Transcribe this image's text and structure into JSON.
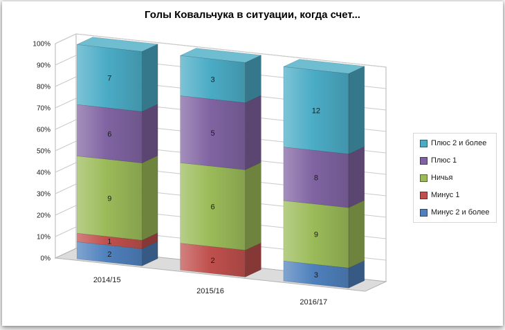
{
  "title": "Голы Ковальчука в ситуации, когда счет...",
  "chart_data": {
    "type": "bar",
    "subtype": "3d-100pct-stacked-column",
    "title": "Голы Ковальчука в ситуации, когда счет...",
    "categories": [
      "2014/15",
      "2015/16",
      "2016/17"
    ],
    "series": [
      {
        "name": "Минус 2 и более",
        "color": "#4F81BD",
        "values": [
          2,
          0,
          3
        ]
      },
      {
        "name": "Минус 1",
        "color": "#C0504D",
        "values": [
          1,
          2,
          0
        ]
      },
      {
        "name": "Ничья",
        "color": "#9BBB59",
        "values": [
          9,
          6,
          9
        ]
      },
      {
        "name": "Плюс 1",
        "color": "#8064A2",
        "values": [
          6,
          5,
          8
        ]
      },
      {
        "name": "Плюс 2 и более",
        "color": "#4BACC6",
        "values": [
          7,
          3,
          12
        ]
      }
    ],
    "y_axis": {
      "min": 0,
      "max": 100,
      "ticks": [
        "0%",
        "10%",
        "20%",
        "30%",
        "40%",
        "50%",
        "60%",
        "70%",
        "80%",
        "90%",
        "100%"
      ],
      "grid": true
    },
    "legend": {
      "position": "right",
      "order": [
        "Плюс 2 и более",
        "Плюс 1",
        "Ничья",
        "Минус 1",
        "Минус 2 и более"
      ]
    }
  }
}
